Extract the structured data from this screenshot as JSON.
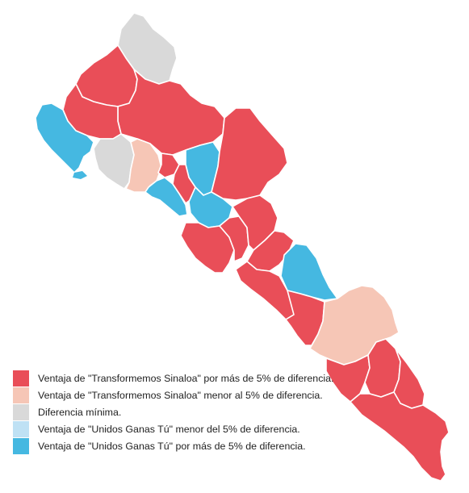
{
  "colors": {
    "sinaloa_strong": "#e94e58",
    "sinaloa_weak": "#f6c6b6",
    "minimal": "#d9d9d9",
    "unidos_weak": "#bfe1f4",
    "unidos_strong": "#45b8e1",
    "border": "#ffffff"
  },
  "legend": {
    "items": [
      {
        "label": "Ventaja de \"Transformemos Sinaloa\" por más de 5% de diferencia.",
        "color": "#e94e58"
      },
      {
        "label": "Ventaja de \"Transformemos Sinaloa\" menor al 5% de diferencia.",
        "color": "#f6c6b6"
      },
      {
        "label": "Diferencia mínima.",
        "color": "#d9d9d9"
      },
      {
        "label": "Ventaja de \"Unidos Ganas Tú\" menor del 5% de diferencia.",
        "color": "#bfe1f4"
      },
      {
        "label": "Ventaja de \"Unidos Ganas Tú\" por más de 5% de diferencia.",
        "color": "#45b8e1"
      }
    ]
  },
  "regions": [
    {
      "category": "minimal"
    },
    {
      "category": "sinaloa_strong"
    },
    {
      "category": "sinaloa_strong"
    },
    {
      "category": "sinaloa_strong"
    },
    {
      "category": "unidos_strong"
    },
    {
      "category": "minimal"
    },
    {
      "category": "sinaloa_weak"
    },
    {
      "category": "sinaloa_strong"
    },
    {
      "category": "unidos_strong"
    },
    {
      "category": "unidos_strong"
    },
    {
      "category": "sinaloa_strong"
    },
    {
      "category": "unidos_strong"
    },
    {
      "category": "sinaloa_strong"
    },
    {
      "category": "sinaloa_strong"
    },
    {
      "category": "sinaloa_strong"
    },
    {
      "category": "sinaloa_strong"
    },
    {
      "category": "sinaloa_strong"
    },
    {
      "category": "unidos_strong"
    },
    {
      "category": "sinaloa_strong"
    },
    {
      "category": "sinaloa_strong"
    },
    {
      "category": "sinaloa_weak"
    },
    {
      "category": "sinaloa_strong"
    },
    {
      "category": "sinaloa_strong"
    },
    {
      "category": "sinaloa_strong"
    },
    {
      "category": "sinaloa_strong"
    }
  ]
}
